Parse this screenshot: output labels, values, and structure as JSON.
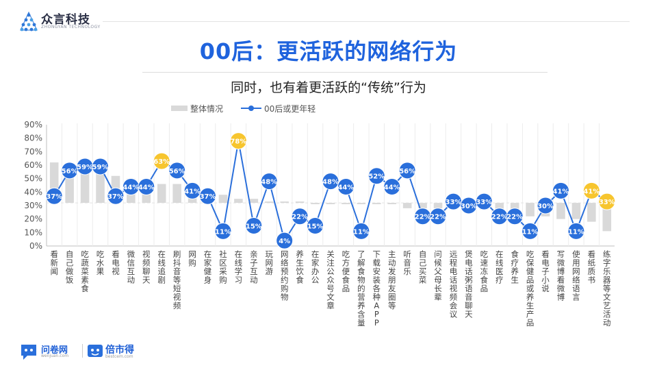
{
  "header": {
    "company": "众言科技",
    "company_sub": "ZHONGYAN TECHNOLOGY"
  },
  "title": "00后：更活跃的网络行为",
  "subtitle": "同时，也有着更活跃的“传统”行为",
  "footer": {
    "brand1": "问卷网",
    "brand1_sub": "wenjuan.com",
    "brand2": "倍市得",
    "brand2_sub": "bestcem.com"
  },
  "colors": {
    "title": "#1f63dd",
    "line": "#2a6fdb",
    "highlight": "#f7c52e",
    "bar": "#d9d9d9"
  },
  "chart_data": {
    "type": "bar",
    "ylim": [
      0,
      90
    ],
    "y_ticks": [
      "0%",
      "10%",
      "20%",
      "30%",
      "40%",
      "50%",
      "60%",
      "70%",
      "80%",
      "90%"
    ],
    "baseline": 32,
    "legend": [
      "整体情况",
      "00后或更年轻"
    ],
    "categories": [
      "看新闻",
      "自己做饭",
      "吃蔬菜素食",
      "吃水果",
      "看电视",
      "微信互动",
      "视频聊天",
      "在线追剧",
      "刷抖音等短视频",
      "网购",
      "在家健身",
      "社区采购",
      "在线学习",
      "亲子互动",
      "玩网游",
      "网络预约购物",
      "养生饮食",
      "在家办公",
      "关注公众号文章",
      "吃方便食品",
      "了解食物的营养含量",
      "下载安装各种APP",
      "主动发朋友圈等",
      "听音乐",
      "自己买菜",
      "问候父母长辈",
      "远程电话视频会议",
      "煲电话粥语音聊天",
      "吃速冻食品",
      "在线医疗",
      "食疗养生",
      "吃保健品或养生产品",
      "看电子小说",
      "写微博看微博",
      "使用网络语言",
      "看纸质书",
      "练字乐器等文艺活动"
    ],
    "series": [
      {
        "name": "整体情况",
        "type": "bar",
        "values": [
          62,
          60,
          58,
          57,
          52,
          50,
          48,
          46,
          46,
          40,
          39,
          38,
          35,
          35,
          33,
          33,
          33,
          31,
          31,
          31,
          31,
          31,
          31,
          28,
          28,
          28,
          28,
          28,
          27,
          27,
          27,
          22,
          22,
          20,
          20,
          18,
          11
        ]
      },
      {
        "name": "00后或更年轻",
        "type": "line",
        "values": [
          37,
          56,
          59,
          59,
          37,
          44,
          44,
          63,
          56,
          41,
          37,
          11,
          78,
          15,
          48,
          4,
          22,
          15,
          48,
          44,
          11,
          52,
          44,
          56,
          22,
          22,
          33,
          30,
          33,
          22,
          22,
          11,
          30,
          41,
          11,
          41,
          33
        ]
      }
    ],
    "highlighted_points": [
      "在线追剧",
      "在线学习",
      "看纸质书",
      "练字乐器等文艺活动"
    ]
  }
}
